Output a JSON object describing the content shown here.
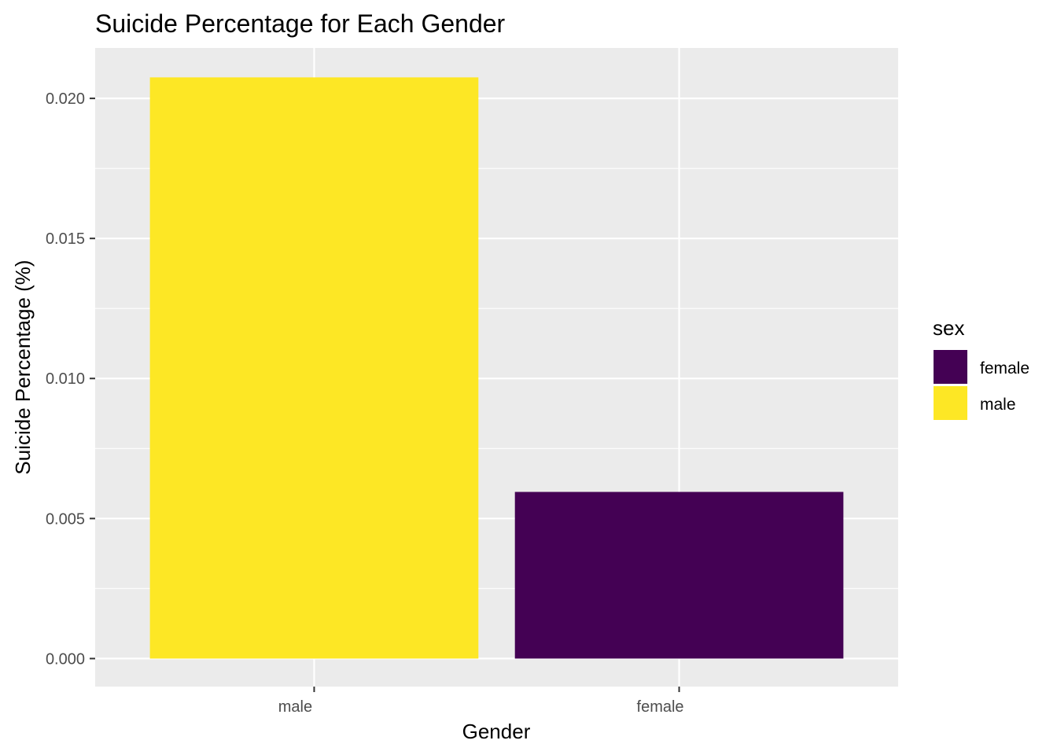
{
  "chart_data": {
    "type": "bar",
    "title": "Suicide Percentage for Each Gender",
    "xlabel": "Gender",
    "ylabel": "Suicide Percentage (%)",
    "categories": [
      "male",
      "female"
    ],
    "values": [
      0.02075,
      0.00595
    ],
    "bar_colors": [
      "#FDE725",
      "#440154"
    ],
    "ylim": [
      -0.001,
      0.0218
    ],
    "yticks": [
      0.0,
      0.005,
      0.01,
      0.015,
      0.02
    ],
    "ytick_labels": [
      "0.000",
      "0.005",
      "0.010",
      "0.015",
      "0.020"
    ],
    "grid": true,
    "panel_background": "#EBEBEB",
    "grid_color": "#FFFFFF",
    "legend": {
      "title": "sex",
      "placement": "right",
      "entries": [
        {
          "label": "female",
          "color": "#440154"
        },
        {
          "label": "male",
          "color": "#FDE725"
        }
      ]
    }
  }
}
